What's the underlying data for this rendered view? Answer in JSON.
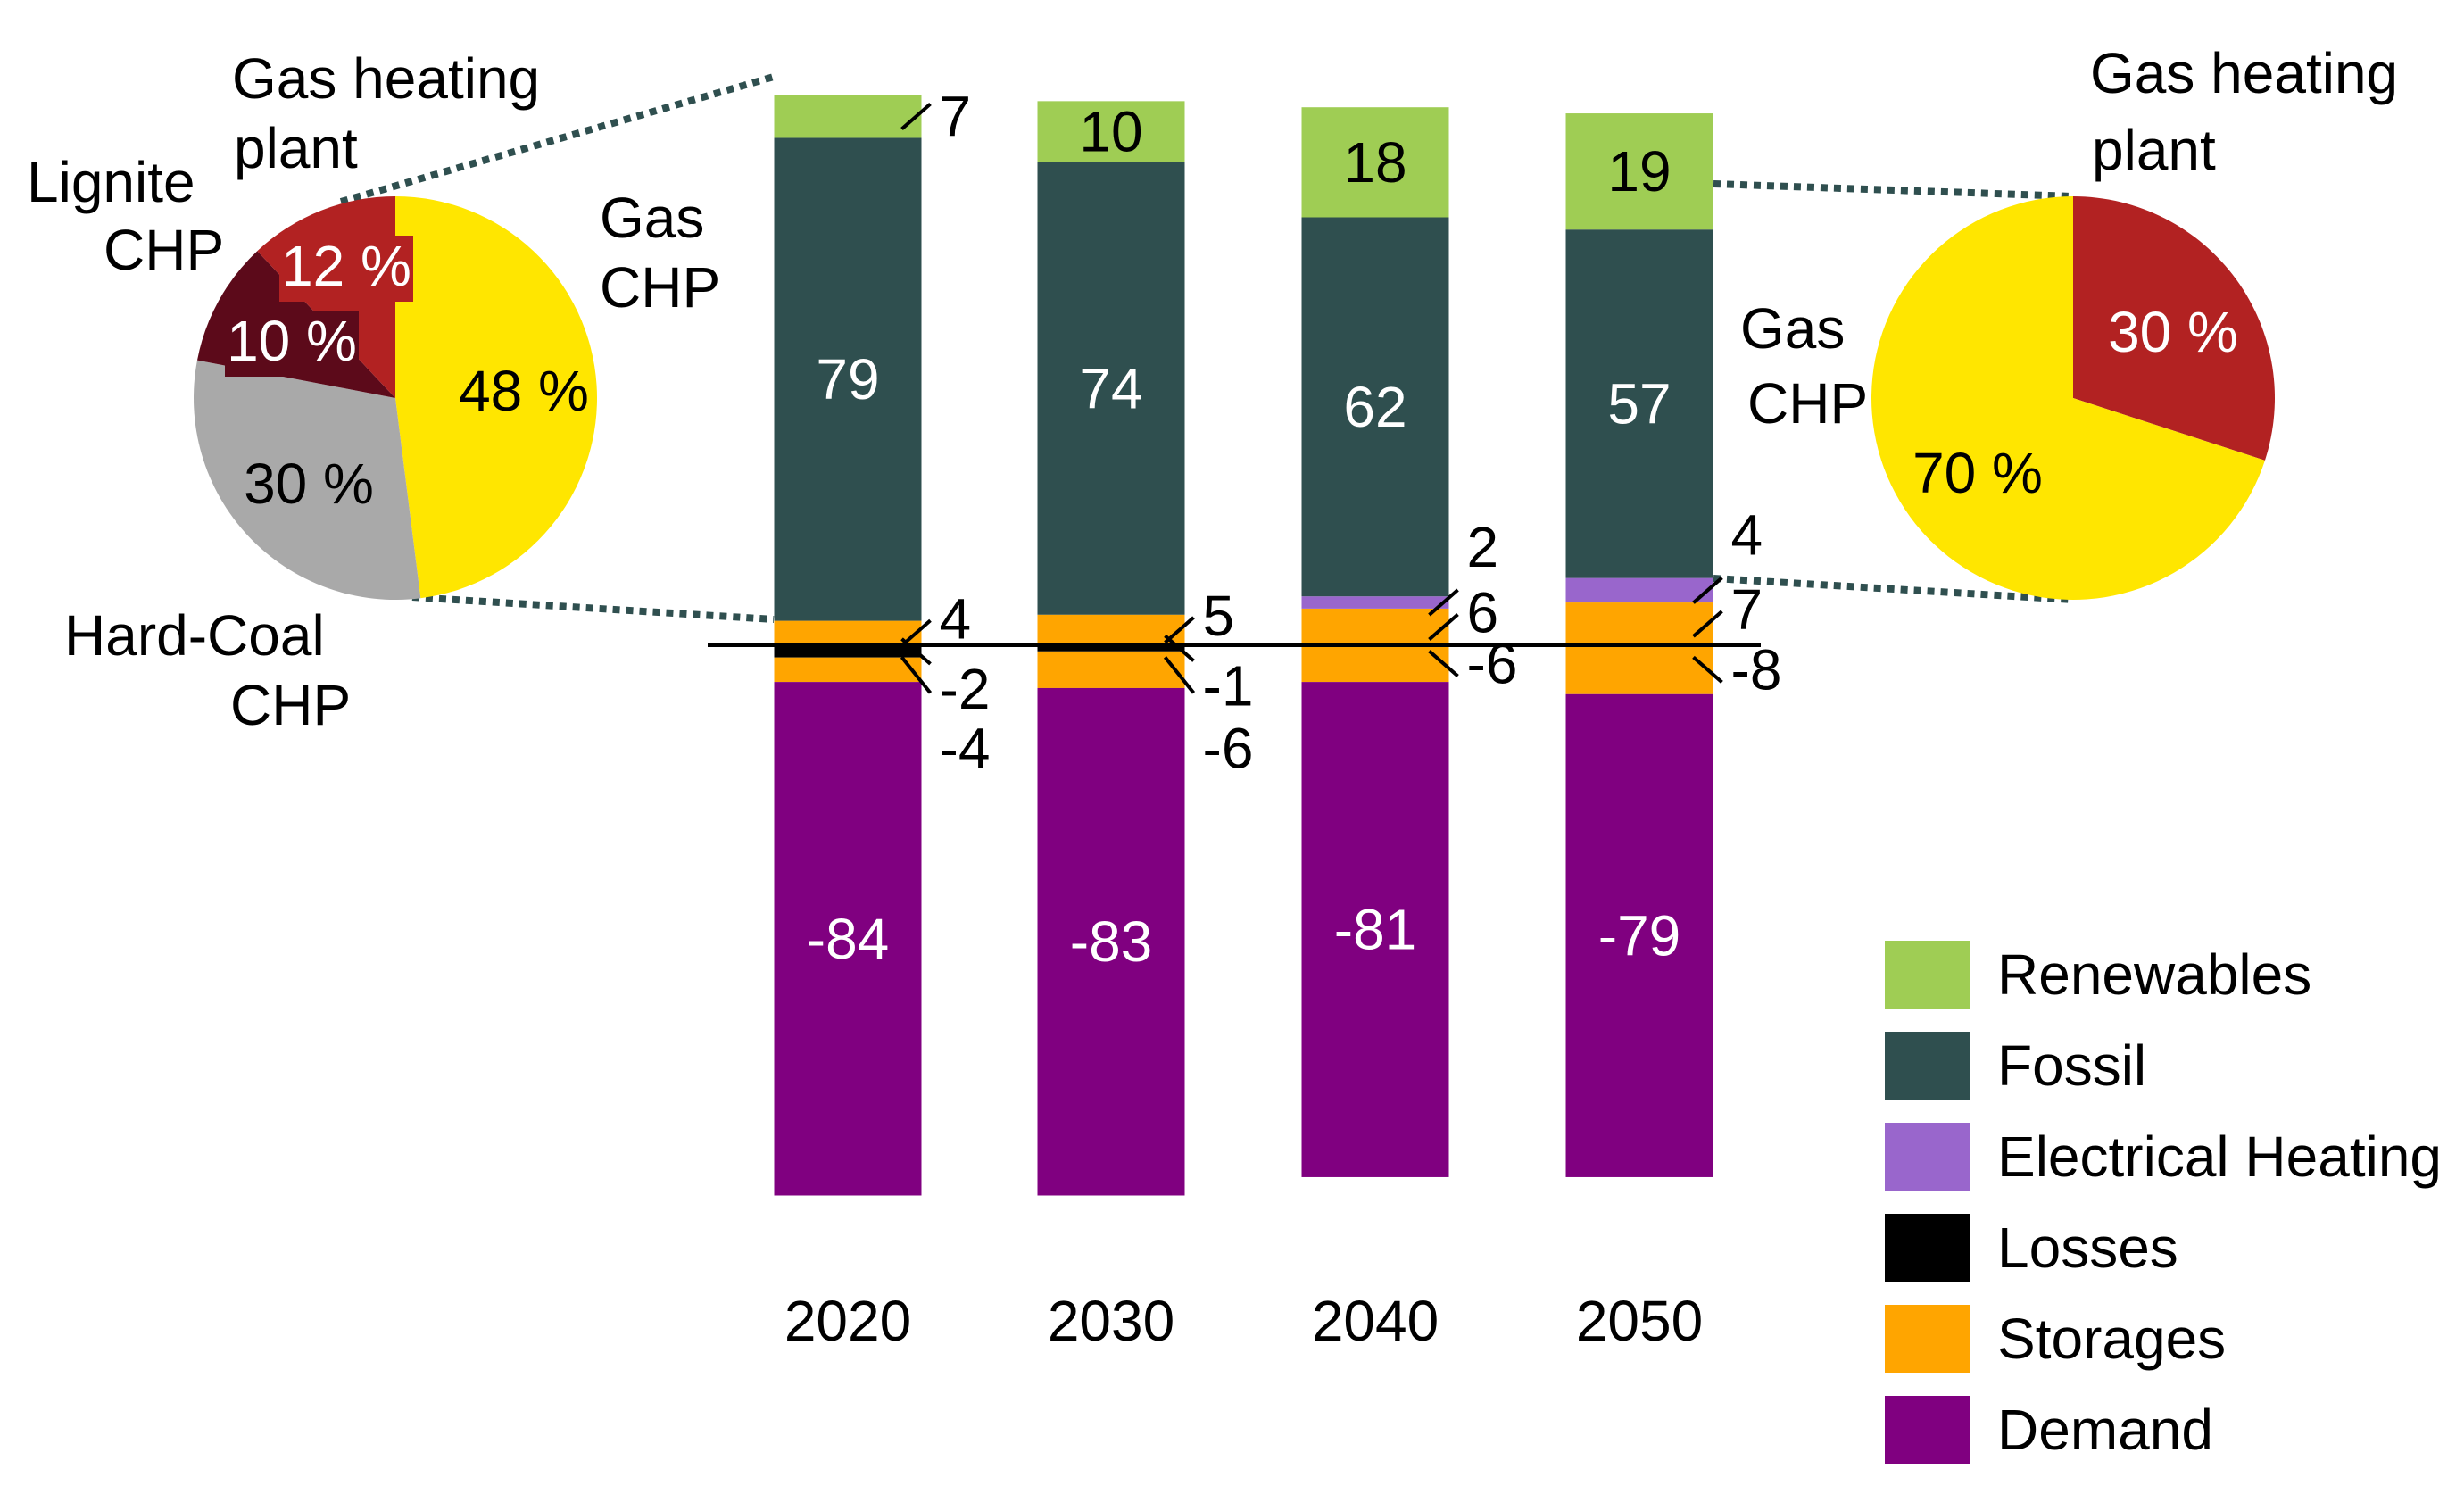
{
  "chart_data": [
    {
      "type": "bar",
      "stacked": true,
      "categories": [
        "2020",
        "2030",
        "2040",
        "2050"
      ],
      "series": [
        {
          "name": "Renewables",
          "values": [
            7,
            10,
            18,
            19
          ]
        },
        {
          "name": "Fossil",
          "values": [
            79,
            74,
            62,
            57
          ]
        },
        {
          "name": "Electrical Heating",
          "values": [
            0,
            0,
            2,
            4
          ]
        },
        {
          "name": "Storages",
          "values": [
            4,
            5,
            6,
            7
          ]
        },
        {
          "name": "Losses",
          "values": [
            -2,
            -1,
            0,
            0
          ]
        },
        {
          "name": "Storages",
          "values": [
            -4,
            -6,
            -6,
            -8
          ]
        },
        {
          "name": "Demand",
          "values": [
            -84,
            -83,
            -81,
            -79
          ]
        }
      ],
      "legend": {
        "position": "bottom-right",
        "entries": [
          "Renewables",
          "Fossil",
          "Electrical Heating",
          "Losses",
          "Storages",
          "Demand"
        ]
      },
      "colors": {
        "Renewables": "#9fcd54",
        "Fossil": "#2f4f4f",
        "Electrical Heating": "#9966cc",
        "Losses": "#000000",
        "Storages": "#ffa500",
        "Demand": "#800080"
      }
    },
    {
      "type": "pie",
      "for_category": "2020",
      "slices": [
        {
          "label": "Gas CHP",
          "value": 48,
          "text": "48 %",
          "color": "#ffe600"
        },
        {
          "label": "Hard-Coal CHP",
          "value": 30,
          "text": "30 %",
          "color": "#a9a9a9"
        },
        {
          "label": "Lignite CHP",
          "value": 10,
          "text": "10 %",
          "color": "#5c0a1a"
        },
        {
          "label": "Gas heating plant",
          "value": 12,
          "text": "12 %",
          "color": "#b22222"
        }
      ]
    },
    {
      "type": "pie",
      "for_category": "2050",
      "slices": [
        {
          "label": "Gas heating plant",
          "value": 30,
          "text": "30 %",
          "color": "#b22222"
        },
        {
          "label": "Gas CHP",
          "value": 70,
          "text": "70 %",
          "color": "#ffe600"
        }
      ]
    }
  ],
  "left_pie_labels": {
    "gas_heating_1": "Gas heating",
    "gas_heating_2": "plant",
    "gas_chp_1": "Gas",
    "gas_chp_2": "CHP",
    "lignite_1": "Lignite",
    "lignite_2": "CHP",
    "hardcoal_1": "Hard-Coal",
    "hardcoal_2": "CHP"
  },
  "right_pie_labels": {
    "gas_heating_1": "Gas heating",
    "gas_heating_2": "plant",
    "gas_chp_1": "Gas",
    "gas_chp_2": "CHP"
  }
}
